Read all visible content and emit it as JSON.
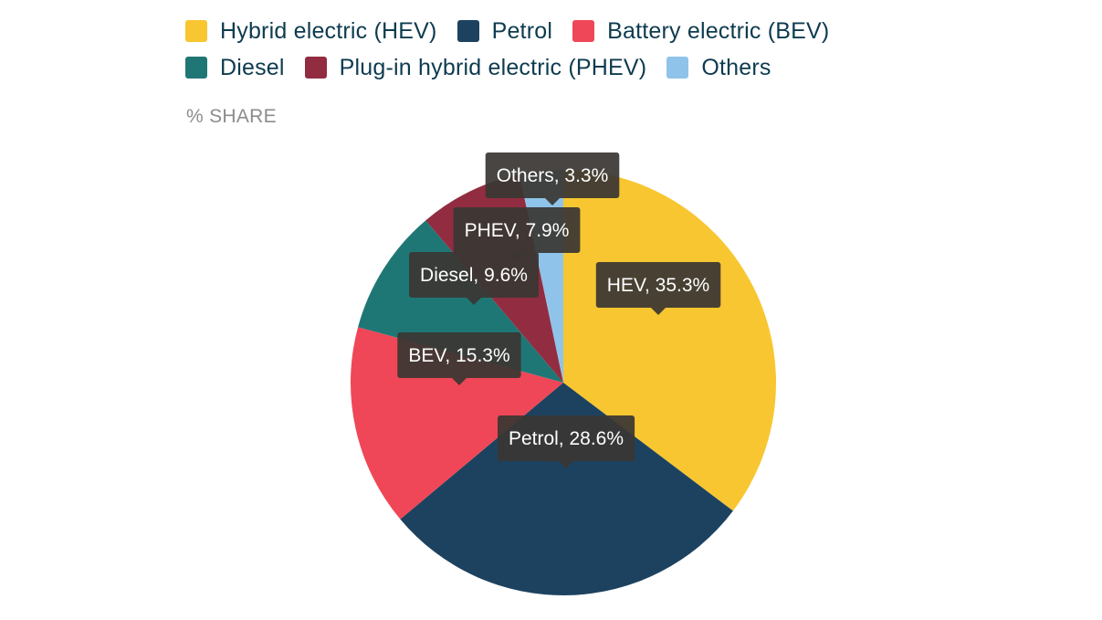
{
  "colors": {
    "hev": "#f8c630",
    "petrol": "#1d4260",
    "bev": "#ef4757",
    "diesel": "#1f7775",
    "phev": "#922c40",
    "others": "#8fc3e9",
    "callout_bg": "#3a3734",
    "legend_text": "#0d3b4f",
    "axis_note": "#8c8c8c"
  },
  "legend": {
    "rows": [
      [
        {
          "key": "hev",
          "label": "Hybrid electric (HEV)"
        },
        {
          "key": "petrol",
          "label": "Petrol"
        },
        {
          "key": "bev",
          "label": "Battery electric (BEV)"
        }
      ],
      [
        {
          "key": "diesel",
          "label": "Diesel"
        },
        {
          "key": "phev",
          "label": "Plug-in hybrid electric (PHEV)"
        },
        {
          "key": "others",
          "label": "Others"
        }
      ]
    ]
  },
  "chart_data": {
    "type": "pie",
    "unit_label": "% SHARE",
    "slices": [
      {
        "key": "hev",
        "name": "Hybrid electric (HEV)",
        "short": "HEV",
        "value": 35.3,
        "data_label": "HEV, 35.3%"
      },
      {
        "key": "petrol",
        "name": "Petrol",
        "short": "Petrol",
        "value": 28.6,
        "data_label": "Petrol, 28.6%"
      },
      {
        "key": "bev",
        "name": "Battery electric (BEV)",
        "short": "BEV",
        "value": 15.3,
        "data_label": "BEV, 15.3%"
      },
      {
        "key": "diesel",
        "name": "Diesel",
        "short": "Diesel",
        "value": 9.6,
        "data_label": "Diesel, 9.6%"
      },
      {
        "key": "phev",
        "name": "Plug-in hybrid electric (PHEV)",
        "short": "PHEV",
        "value": 7.9,
        "data_label": "PHEV, 7.9%"
      },
      {
        "key": "others",
        "name": "Others",
        "short": "Others",
        "value": 3.3,
        "data_label": "Others, 3.3%"
      }
    ],
    "start_angle": "12 o'clock",
    "direction": "clockwise",
    "legend_placement": "top"
  }
}
